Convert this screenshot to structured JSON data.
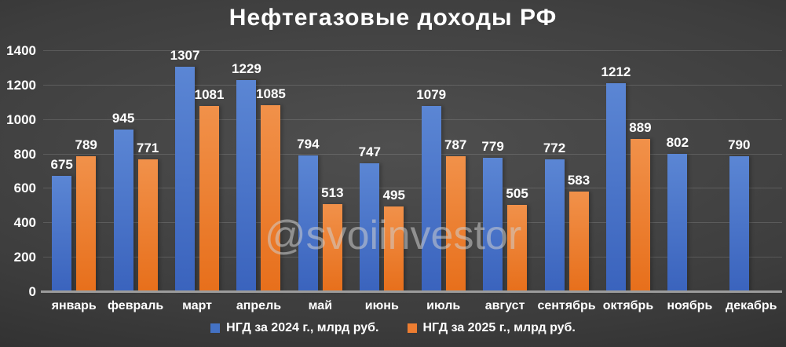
{
  "title": "Нефтегазовые доходы РФ",
  "watermark": {
    "text": "@svoiinvestor"
  },
  "chart_data": {
    "type": "bar",
    "title": "Нефтегазовые доходы РФ",
    "categories": [
      "январь",
      "февраль",
      "март",
      "апрель",
      "май",
      "июнь",
      "июль",
      "август",
      "сентябрь",
      "октябрь",
      "ноябрь",
      "декабрь"
    ],
    "series": [
      {
        "name": "НГД за 2024 г., млрд руб.",
        "color": "#4472C4",
        "values": [
          675,
          945,
          1307,
          1229,
          794,
          747,
          1079,
          779,
          772,
          1212,
          802,
          790
        ]
      },
      {
        "name": "НГД за 2025 г., млрд руб.",
        "color": "#ED7D31",
        "values": [
          789,
          771,
          1081,
          1085,
          513,
          495,
          787,
          505,
          583,
          889,
          null,
          null
        ]
      }
    ],
    "ylabel": "",
    "xlabel": "",
    "ylim": [
      0,
      1400
    ],
    "ytick_step": 200,
    "grid": true,
    "legend_position": "bottom"
  }
}
